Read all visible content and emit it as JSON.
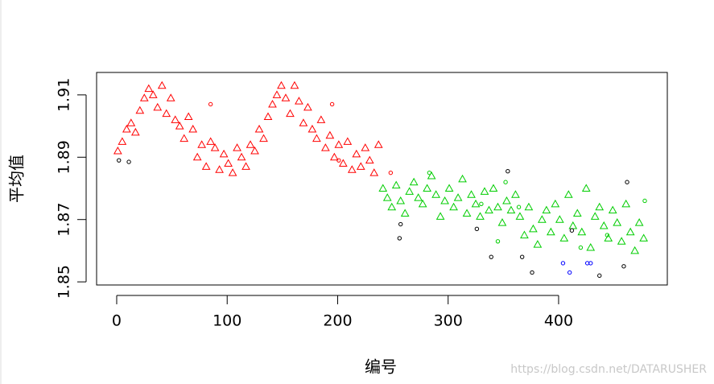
{
  "chart_data": {
    "type": "scatter",
    "x_label": "编号",
    "y_label": "平均值",
    "watermark": "https://blog.csdn.net/DATARUSHER",
    "xlim": [
      -18.2,
      498.4
    ],
    "ylim": [
      1.849,
      1.9172
    ],
    "xticks": [
      0,
      100,
      200,
      300,
      400
    ],
    "yticks": [
      1.85,
      1.87,
      1.89,
      1.91
    ],
    "series": [
      {
        "color": "#ff0000",
        "shape": "triangle",
        "x": [
          1,
          5,
          9,
          13,
          17,
          21,
          25,
          29,
          33,
          37,
          41,
          45,
          49,
          53,
          57,
          61,
          65,
          69,
          73,
          77,
          81,
          85,
          89,
          93,
          97,
          101,
          105,
          109,
          113,
          117,
          121,
          125,
          129,
          133,
          137,
          141,
          145,
          149,
          153,
          157,
          161,
          165,
          169,
          173,
          177,
          181,
          185,
          189,
          193,
          197,
          201,
          205,
          209,
          213,
          217,
          221,
          225,
          229,
          233,
          237
        ],
        "values": [
          1.892,
          1.895,
          1.899,
          1.901,
          1.898,
          1.905,
          1.909,
          1.912,
          1.91,
          1.906,
          1.913,
          1.904,
          1.909,
          1.902,
          1.9,
          1.896,
          1.903,
          1.899,
          1.89,
          1.894,
          1.887,
          1.895,
          1.893,
          1.886,
          1.891,
          1.888,
          1.885,
          1.893,
          1.89,
          1.887,
          1.894,
          1.892,
          1.899,
          1.896,
          1.903,
          1.907,
          1.91,
          1.913,
          1.909,
          1.904,
          1.913,
          1.908,
          1.901,
          1.906,
          1.899,
          1.896,
          1.902,
          1.893,
          1.897,
          1.89,
          1.894,
          1.888,
          1.895,
          1.886,
          1.891,
          1.887,
          1.893,
          1.889,
          1.885,
          1.894
        ]
      },
      {
        "color": "#00cd00",
        "shape": "triangle",
        "x": [
          241,
          245,
          249,
          253,
          257,
          261,
          265,
          269,
          273,
          277,
          281,
          285,
          289,
          293,
          297,
          301,
          305,
          309,
          313,
          317,
          321,
          325,
          329,
          333,
          337,
          341,
          345,
          349,
          353,
          357,
          361,
          365,
          369,
          373,
          377,
          381,
          385,
          389,
          393,
          397,
          401,
          405,
          409,
          413,
          417,
          421,
          425,
          429,
          433,
          437,
          441,
          445,
          449,
          453,
          457,
          461,
          465,
          469,
          473,
          477
        ],
        "values": [
          1.88,
          1.877,
          1.874,
          1.881,
          1.876,
          1.872,
          1.879,
          1.882,
          1.877,
          1.875,
          1.88,
          1.884,
          1.878,
          1.871,
          1.876,
          1.88,
          1.874,
          1.877,
          1.883,
          1.872,
          1.878,
          1.875,
          1.871,
          1.879,
          1.873,
          1.88,
          1.874,
          1.869,
          1.876,
          1.873,
          1.878,
          1.871,
          1.865,
          1.874,
          1.867,
          1.862,
          1.87,
          1.873,
          1.866,
          1.875,
          1.87,
          1.864,
          1.878,
          1.868,
          1.872,
          1.866,
          1.88,
          1.861,
          1.871,
          1.874,
          1.868,
          1.864,
          1.873,
          1.869,
          1.863,
          1.875,
          1.866,
          1.86,
          1.869,
          1.864
        ]
      },
      {
        "color": "#000000",
        "shape": "circle",
        "x": [
          2,
          11,
          256,
          257,
          326,
          339,
          354,
          367,
          376,
          412,
          437,
          459,
          462
        ],
        "values": [
          1.889,
          1.8885,
          1.864,
          1.8685,
          1.867,
          1.858,
          1.8855,
          1.858,
          1.853,
          1.8665,
          1.852,
          1.855,
          1.882
        ]
      },
      {
        "color": "#ff0000",
        "shape": "circle",
        "x": [
          85,
          195,
          201,
          248
        ],
        "values": [
          1.907,
          1.907,
          1.889,
          1.885
        ]
      },
      {
        "color": "#00cd00",
        "shape": "circle",
        "x": [
          283,
          330,
          345,
          352,
          364,
          420,
          444,
          478
        ],
        "values": [
          1.885,
          1.875,
          1.863,
          1.882,
          1.874,
          1.861,
          1.865,
          1.876
        ]
      },
      {
        "color": "#0000ff",
        "shape": "circle",
        "x": [
          404,
          410,
          426,
          429
        ],
        "values": [
          1.856,
          1.853,
          1.856,
          1.856
        ]
      }
    ]
  }
}
